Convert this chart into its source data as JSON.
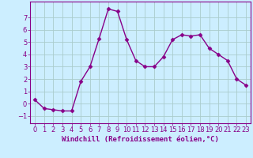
{
  "x": [
    0,
    1,
    2,
    3,
    4,
    5,
    6,
    7,
    8,
    9,
    10,
    11,
    12,
    13,
    14,
    15,
    16,
    17,
    18,
    19,
    20,
    21,
    22,
    23
  ],
  "y": [
    0.3,
    -0.4,
    -0.5,
    -0.6,
    -0.6,
    1.8,
    3.0,
    5.3,
    7.7,
    7.5,
    5.2,
    3.5,
    3.0,
    3.0,
    3.8,
    5.2,
    5.6,
    5.5,
    5.6,
    4.5,
    4.0,
    3.5,
    2.0,
    1.5
  ],
  "line_color": "#880088",
  "marker": "D",
  "marker_size": 2.5,
  "linewidth": 1.0,
  "xlabel": "Windchill (Refroidissement éolien,°C)",
  "xlabel_fontsize": 6.5,
  "bg_color": "#cceeff",
  "grid_color": "#aacccc",
  "yticks": [
    -1,
    0,
    1,
    2,
    3,
    4,
    5,
    6,
    7
  ],
  "xticks": [
    0,
    1,
    2,
    3,
    4,
    5,
    6,
    7,
    8,
    9,
    10,
    11,
    12,
    13,
    14,
    15,
    16,
    17,
    18,
    19,
    20,
    21,
    22,
    23
  ],
  "ylim": [
    -1.6,
    8.3
  ],
  "xlim": [
    -0.5,
    23.5
  ],
  "tick_fontsize": 6.0,
  "tick_color": "#880088",
  "spine_color": "#880088"
}
